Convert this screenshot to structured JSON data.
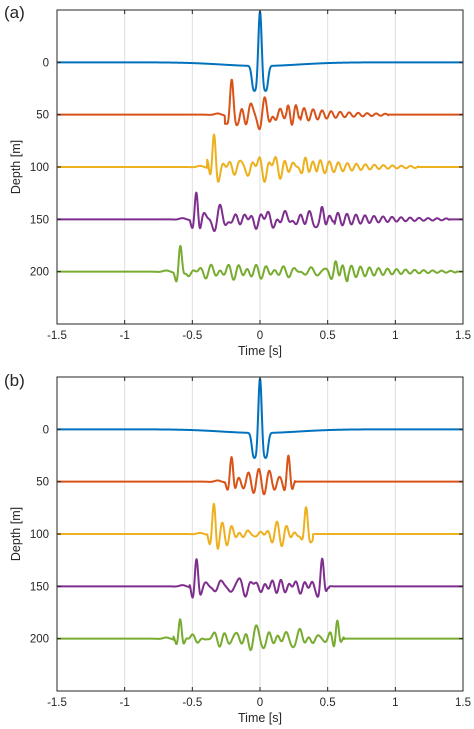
{
  "chart_data": [
    {
      "type": "line",
      "panel_label": "(a)",
      "xlabel": "Time [s]",
      "ylabel": "Depth [m]",
      "xlim": [
        -1.5,
        1.5
      ],
      "xticks": [
        -1.5,
        -1,
        -0.5,
        0,
        0.5,
        1,
        1.5
      ],
      "xtick_labels": [
        "-1.5",
        "-1",
        "-0.5",
        "0",
        "0.5",
        "1",
        "1.5"
      ],
      "ylim": [
        250,
        -50
      ],
      "yticks": [
        0,
        50,
        100,
        150,
        200
      ],
      "ytick_labels": [
        "0",
        "50",
        "100",
        "150",
        "200"
      ],
      "grid": "vertical",
      "legend": "none",
      "series": [
        {
          "depth": 0,
          "color": "#0072BD",
          "events": [
            {
              "t": 0,
              "kind": "central",
              "amp": 52
            }
          ],
          "base": {
            "kind": "dip",
            "amp": -3.5,
            "width": 0.28
          },
          "noise": 0.0
        },
        {
          "depth": 50,
          "color": "#D95319",
          "events": [
            {
              "t": -0.21,
              "kind": "direct",
              "amp": 28
            },
            {
              "t": 0.22,
              "kind": "pulse",
              "amp": 15
            },
            {
              "t": 0.25,
              "kind": "coda",
              "amp": 8,
              "length": 0.7
            }
          ],
          "noise": 4.5
        },
        {
          "depth": 100,
          "color": "#EDB120",
          "events": [
            {
              "t": -0.34,
              "kind": "direct",
              "amp": 26
            },
            {
              "t": 0.34,
              "kind": "pulse",
              "amp": 13
            },
            {
              "t": 0.37,
              "kind": "coda",
              "amp": 8,
              "length": 0.8
            }
          ],
          "noise": 4.5
        },
        {
          "depth": 150,
          "color": "#7E2F8E",
          "events": [
            {
              "t": -0.47,
              "kind": "direct",
              "amp": 26
            },
            {
              "t": 0.46,
              "kind": "pulse",
              "amp": 12
            },
            {
              "t": 0.5,
              "kind": "coda",
              "amp": 7.5,
              "length": 0.9
            }
          ],
          "noise": 4.0
        },
        {
          "depth": 200,
          "color": "#77AC30",
          "events": [
            {
              "t": -0.59,
              "kind": "direct",
              "amp": 24
            },
            {
              "t": 0.56,
              "kind": "pulse",
              "amp": 11
            },
            {
              "t": 0.6,
              "kind": "coda",
              "amp": 7,
              "length": 0.85
            }
          ],
          "noise": 4.0
        }
      ]
    },
    {
      "type": "line",
      "panel_label": "(b)",
      "xlabel": "Time [s]",
      "ylabel": "Depth [m]",
      "xlim": [
        -1.5,
        1.5
      ],
      "xticks": [
        -1.5,
        -1,
        -0.5,
        0,
        0.5,
        1,
        1.5
      ],
      "xtick_labels": [
        "-1.5",
        "-1",
        "-0.5",
        "0",
        "0.5",
        "1",
        "1.5"
      ],
      "ylim": [
        250,
        -50
      ],
      "yticks": [
        0,
        50,
        100,
        150,
        200
      ],
      "ytick_labels": [
        "0",
        "50",
        "100",
        "150",
        "200"
      ],
      "grid": "vertical",
      "legend": "none",
      "series": [
        {
          "depth": 0,
          "color": "#0072BD",
          "events": [
            {
              "t": 0,
              "kind": "central",
              "amp": 52
            }
          ],
          "base": {
            "kind": "dip",
            "amp": -3.5,
            "width": 0.28
          },
          "noise": 0.0
        },
        {
          "depth": 50,
          "color": "#D95319",
          "events": [
            {
              "t": -0.21,
              "kind": "direct",
              "amp": 24
            },
            {
              "t": 0.21,
              "kind": "direct",
              "amp": 24
            }
          ],
          "noise": 3.5
        },
        {
          "depth": 100,
          "color": "#EDB120",
          "events": [
            {
              "t": -0.34,
              "kind": "direct",
              "amp": 24
            },
            {
              "t": 0.34,
              "kind": "direct",
              "amp": 24
            }
          ],
          "noise": 3.5
        },
        {
          "depth": 150,
          "color": "#7E2F8E",
          "events": [
            {
              "t": -0.47,
              "kind": "direct",
              "amp": 24
            },
            {
              "t": 0.46,
              "kind": "direct",
              "amp": 24
            }
          ],
          "noise": 3.5
        },
        {
          "depth": 200,
          "color": "#77AC30",
          "events": [
            {
              "t": -0.59,
              "kind": "direct",
              "amp": 23
            },
            {
              "t": 0.57,
              "kind": "direct",
              "amp": 23
            }
          ],
          "noise": 3.5
        }
      ]
    }
  ]
}
